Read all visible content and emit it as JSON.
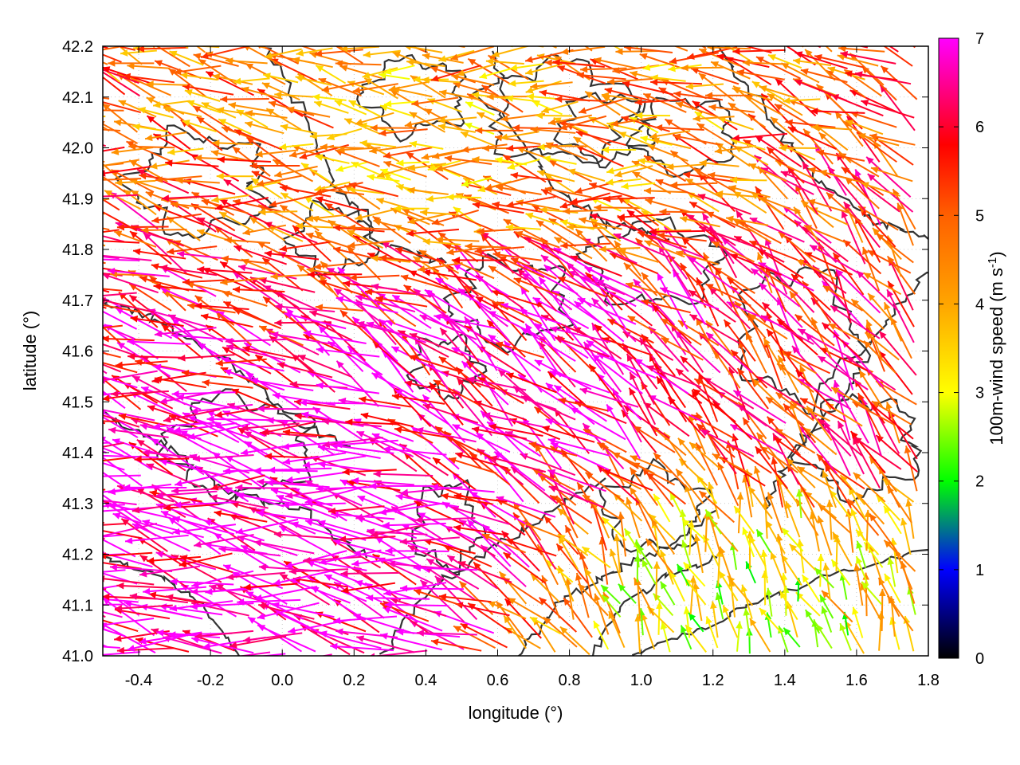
{
  "chart_data": {
    "type": "vector-field",
    "title": "",
    "xlabel": "longitude (°)",
    "ylabel": "latitude (°)",
    "colorbar_label_main": "100m-wind speed (m s",
    "colorbar_label_sup": "-1",
    "colorbar_label_end": ")",
    "xlim": [
      -0.5,
      1.8
    ],
    "ylim": [
      41.0,
      42.2
    ],
    "clim": [
      0,
      7
    ],
    "x_ticks": [
      -0.4,
      -0.2,
      0.0,
      0.2,
      0.4,
      0.6,
      0.8,
      1.0,
      1.2,
      1.4,
      1.6,
      1.8
    ],
    "x_tick_labels": [
      "-0.4",
      "-0.2",
      "0.0",
      "0.2",
      "0.4",
      "0.6",
      "0.8",
      "1.0",
      "1.2",
      "1.4",
      "1.6",
      "1.8"
    ],
    "y_ticks": [
      41.0,
      41.1,
      41.2,
      41.3,
      41.4,
      41.5,
      41.6,
      41.7,
      41.8,
      41.9,
      42.0,
      42.1,
      42.2
    ],
    "y_tick_labels": [
      "41.0",
      "41.1",
      "41.2",
      "41.3",
      "41.4",
      "41.5",
      "41.6",
      "41.7",
      "41.8",
      "41.9",
      "42.0",
      "42.1",
      "42.2"
    ],
    "colorbar_ticks": [
      0,
      1,
      2,
      3,
      4,
      5,
      6,
      7
    ],
    "colorbar_tick_labels": [
      "0",
      "1",
      "2",
      "3",
      "4",
      "5",
      "6",
      "7"
    ],
    "colormap": [
      {
        "v": 0.0,
        "color": "#000000"
      },
      {
        "v": 1.0,
        "color": "#0000ff"
      },
      {
        "v": 1.5,
        "color": "#008080"
      },
      {
        "v": 2.0,
        "color": "#00ff00"
      },
      {
        "v": 3.0,
        "color": "#ffff00"
      },
      {
        "v": 4.0,
        "color": "#ffa500"
      },
      {
        "v": 5.0,
        "color": "#ff6000"
      },
      {
        "v": 5.8,
        "color": "#ff0000"
      },
      {
        "v": 6.4,
        "color": "#ff0080"
      },
      {
        "v": 7.0,
        "color": "#ff00ff"
      }
    ],
    "grid": "dotted",
    "legend": "none",
    "wind_regions": [
      {
        "name_hint": "west-southwest strong jet",
        "lon": [
          -0.5,
          0.75
        ],
        "lat": [
          41.0,
          41.5
        ],
        "speed": 7.0,
        "direction_deg": 170
      },
      {
        "name_hint": "central convergence",
        "lon": [
          0.3,
          1.2
        ],
        "lat": [
          41.35,
          41.75
        ],
        "speed": 6.6,
        "direction_deg": 145
      },
      {
        "name_hint": "northwest moderate easterly",
        "lon": [
          -0.5,
          1.8
        ],
        "lat": [
          41.75,
          42.2
        ],
        "speed": 4.2,
        "direction_deg": 172
      },
      {
        "name_hint": "east moderate",
        "lon": [
          1.2,
          1.8
        ],
        "lat": [
          41.25,
          41.75
        ],
        "speed": 5.6,
        "direction_deg": 130
      },
      {
        "name_hint": "southeast light",
        "lon": [
          0.9,
          1.8
        ],
        "lat": [
          41.0,
          41.2
        ],
        "speed": 3.2,
        "direction_deg": 110
      }
    ],
    "contour_color": "#333333"
  }
}
